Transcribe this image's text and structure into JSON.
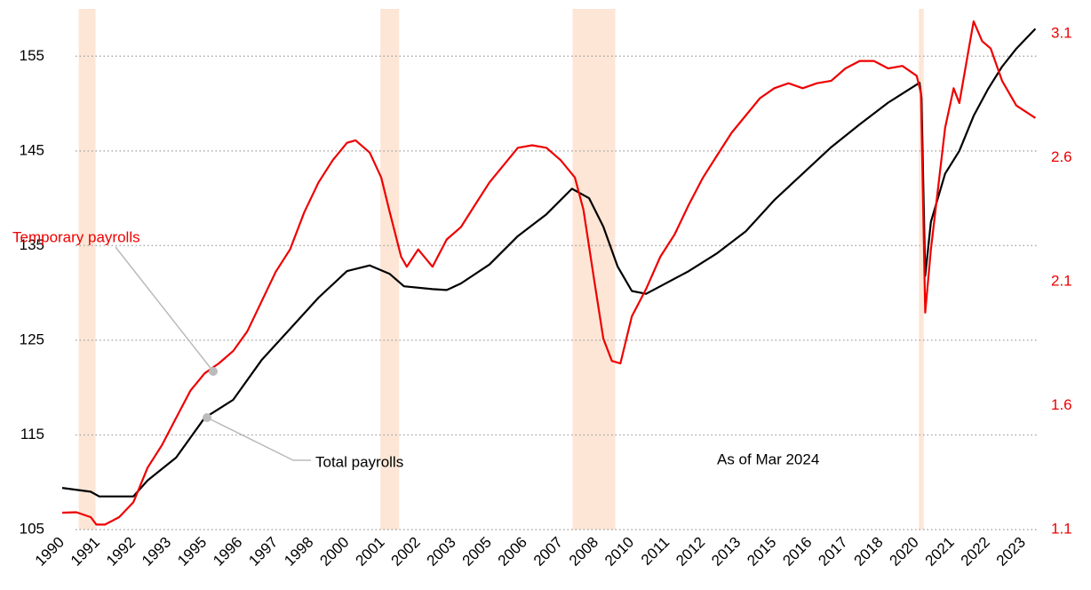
{
  "chart_data": {
    "type": "line",
    "xlim": [
      1990,
      2024.25
    ],
    "xticks": [
      1990,
      {
        "value": 1991.25,
        "label": "1991"
      },
      {
        "value": 1992.5,
        "label": "1992"
      },
      {
        "value": 1993.75,
        "label": "1993"
      },
      1995,
      {
        "value": 1996.25,
        "label": "1996"
      },
      {
        "value": 1997.5,
        "label": "1997"
      },
      {
        "value": 1998.75,
        "label": "1998"
      },
      2000,
      {
        "value": 2001.25,
        "label": "2001"
      },
      {
        "value": 2002.5,
        "label": "2002"
      },
      {
        "value": 2003.75,
        "label": "2003"
      },
      2005,
      {
        "value": 2006.25,
        "label": "2006"
      },
      {
        "value": 2007.5,
        "label": "2007"
      },
      {
        "value": 2008.75,
        "label": "2008"
      },
      2010,
      {
        "value": 2011.25,
        "label": "2011"
      },
      {
        "value": 2012.5,
        "label": "2012"
      },
      {
        "value": 2013.75,
        "label": "2013"
      },
      2015,
      {
        "value": 2016.25,
        "label": "2016"
      },
      {
        "value": 2017.5,
        "label": "2017"
      },
      {
        "value": 2018.75,
        "label": "2018"
      },
      2020,
      {
        "value": 2021.25,
        "label": "2021"
      },
      {
        "value": 2022.5,
        "label": "2022"
      },
      {
        "value": 2023.75,
        "label": "2023"
      }
    ],
    "ylim": [
      105,
      160
    ],
    "yticks": [
      105,
      115,
      125,
      135,
      145,
      155
    ],
    "y2lim": [
      1.1,
      3.2
    ],
    "y2ticks": [
      1.1,
      1.6,
      2.1,
      2.6,
      3.1
    ],
    "y2color": "#ee0000",
    "grid": true,
    "shaded": [
      [
        1990.58,
        1991.17
      ],
      [
        2001.17,
        2001.83
      ],
      [
        2007.92,
        2009.42
      ],
      [
        2020.08,
        2020.25
      ]
    ],
    "shade_color": "#fde6d6",
    "series": [
      {
        "name": "Total payrolls",
        "color": "#000000",
        "axis": "y",
        "x": [
          1990,
          1991,
          1991.3,
          1992.5,
          1993,
          1994,
          1995,
          1996,
          1997,
          1998,
          1999,
          2000,
          2000.8,
          2001.5,
          2002,
          2003,
          2003.5,
          2004,
          2005,
          2006,
          2007,
          2007.9,
          2008.5,
          2009,
          2009.5,
          2010,
          2010.5,
          2011,
          2012,
          2013,
          2014,
          2015,
          2016,
          2017,
          2018,
          2019,
          2020.0,
          2020.1,
          2020.17,
          2020.3,
          2020.5,
          2021,
          2021.5,
          2022,
          2022.5,
          2023,
          2023.5,
          2024.17
        ],
        "values": [
          109.4,
          109,
          108.5,
          108.5,
          110.2,
          112.6,
          116.8,
          118.7,
          122.9,
          126.2,
          129.5,
          132.3,
          132.9,
          132,
          130.7,
          130.4,
          130.3,
          131,
          133,
          136,
          138.3,
          141,
          140,
          137,
          132.8,
          130.2,
          129.9,
          130.7,
          132.3,
          134.2,
          136.5,
          139.8,
          142.6,
          145.4,
          147.8,
          150.1,
          152,
          152.2,
          150.6,
          131.8,
          137.5,
          142.6,
          145,
          148.7,
          151.5,
          153.9,
          155.8,
          157.9
        ]
      },
      {
        "name": "Temporary payrolls",
        "color": "#ee0000",
        "axis": "y2",
        "x": [
          1990,
          1990.5,
          1991,
          1991.2,
          1991.5,
          1992,
          1992.5,
          1993,
          1993.5,
          1994,
          1994.5,
          1995,
          1995.5,
          1996,
          1996.5,
          1997,
          1997.5,
          1998,
          1998.5,
          1999,
          1999.5,
          2000,
          2000.3,
          2000.8,
          2001.2,
          2001.5,
          2001.9,
          2002.1,
          2002.5,
          2003,
          2003.5,
          2004,
          2004.5,
          2005,
          2005.5,
          2006,
          2006.5,
          2007,
          2007.5,
          2008,
          2008.3,
          2008.7,
          2009,
          2009.3,
          2009.6,
          2010,
          2010.5,
          2011,
          2011.5,
          2012,
          2012.5,
          2013,
          2013.5,
          2014,
          2014.5,
          2015,
          2015.5,
          2016,
          2016.5,
          2017,
          2017.5,
          2018,
          2018.5,
          2019,
          2019.5,
          2020.0,
          2020.15,
          2020.3,
          2020.5,
          2021,
          2021.3,
          2021.5,
          2021.8,
          2022,
          2022.3,
          2022.6,
          2023,
          2023.5,
          2024.17
        ],
        "values": [
          1.168,
          1.17,
          1.15,
          1.12,
          1.12,
          1.15,
          1.21,
          1.35,
          1.44,
          1.55,
          1.66,
          1.73,
          1.77,
          1.82,
          1.9,
          2.02,
          2.14,
          2.23,
          2.38,
          2.5,
          2.59,
          2.66,
          2.67,
          2.62,
          2.52,
          2.38,
          2.2,
          2.16,
          2.23,
          2.16,
          2.27,
          2.32,
          2.41,
          2.5,
          2.57,
          2.64,
          2.65,
          2.64,
          2.59,
          2.52,
          2.39,
          2.09,
          1.87,
          1.78,
          1.77,
          1.96,
          2.07,
          2.2,
          2.29,
          2.41,
          2.52,
          2.61,
          2.7,
          2.77,
          2.84,
          2.88,
          2.9,
          2.88,
          2.9,
          2.91,
          2.96,
          2.99,
          2.99,
          2.96,
          2.97,
          2.93,
          2.86,
          1.975,
          2.23,
          2.72,
          2.88,
          2.82,
          3.02,
          3.15,
          3.07,
          3.04,
          2.91,
          2.81,
          2.76
        ]
      }
    ],
    "annotations": [
      "As of Mar 2024"
    ]
  }
}
